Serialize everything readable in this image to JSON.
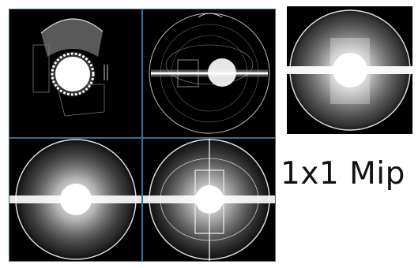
{
  "mip_label": "1x1 Mip",
  "panels": [
    {
      "name": "mip-top-left",
      "kind": "gear"
    },
    {
      "name": "mip-top-right",
      "kind": "rings"
    },
    {
      "name": "mip-bottom-left",
      "kind": "sphere"
    },
    {
      "name": "mip-bottom-right",
      "kind": "sphere-box"
    }
  ],
  "single_mip": {
    "name": "mip-1x1",
    "kind": "sphere-cross"
  },
  "colors": {
    "background": "#000000",
    "grid_line": "#3a6f8f",
    "label_text": "#111111"
  }
}
